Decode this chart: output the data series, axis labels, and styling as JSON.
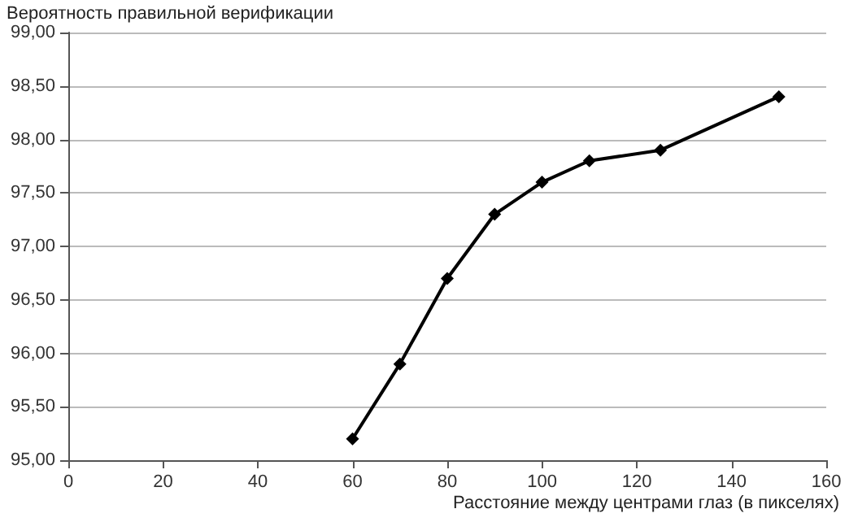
{
  "chart_data": {
    "type": "line",
    "ylabel": "Вероятность правильной верификации",
    "xlabel": "Расстояние между центрами глаз (в пикселях)",
    "x": [
      60,
      70,
      80,
      90,
      100,
      110,
      125,
      150
    ],
    "series": [
      {
        "color": "#000000",
        "values": [
          95.2,
          95.9,
          96.7,
          97.3,
          97.6,
          97.8,
          97.9,
          98.4
        ]
      }
    ],
    "xlim": [
      0,
      160
    ],
    "xticks": [
      0,
      20,
      40,
      60,
      80,
      100,
      120,
      140,
      160
    ],
    "ylim": [
      95,
      99
    ],
    "yticks": [
      {
        "value": 95,
        "label": "95,00"
      },
      {
        "value": 95.5,
        "label": "95,50"
      },
      {
        "value": 96,
        "label": "96,00"
      },
      {
        "value": 96.5,
        "label": "96,50"
      },
      {
        "value": 97,
        "label": "97,00"
      },
      {
        "value": 97.5,
        "label": "97,50"
      },
      {
        "value": 98,
        "label": "98,00"
      },
      {
        "value": 98.5,
        "label": "98,50"
      },
      {
        "value": 99,
        "label": "99,00"
      }
    ],
    "grid": "y",
    "marker": "diamond",
    "line_style": "solid"
  }
}
